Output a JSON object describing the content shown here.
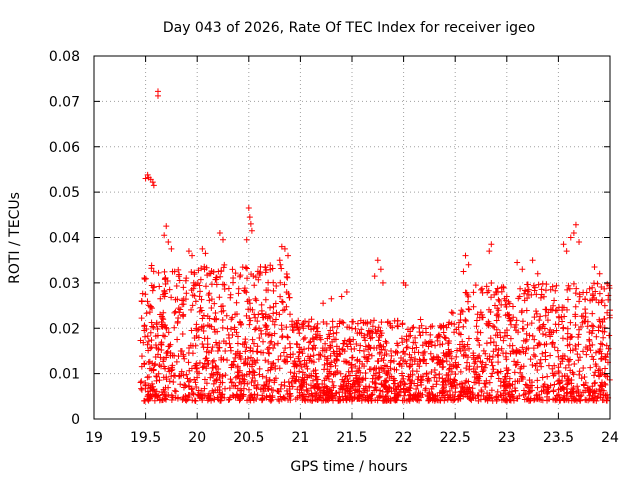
{
  "chart_data": {
    "type": "scatter",
    "title": "Day 043 of 2026, Rate Of TEC Index for receiver igeo",
    "xlabel": "GPS time / hours",
    "ylabel": "ROTI / TECUs",
    "xlim": [
      19,
      24
    ],
    "ylim": [
      0,
      0.08
    ],
    "grid": true,
    "marker": "+",
    "marker_color": "#ff0000",
    "x_ticks": [
      19,
      19.5,
      20,
      20.5,
      21,
      21.5,
      22,
      22.5,
      23,
      23.5,
      24
    ],
    "x_tick_labels": [
      "19",
      "19.5",
      "20",
      "20.5",
      "21",
      "21.5",
      "22",
      "22.5",
      "23",
      "23.5",
      "24"
    ],
    "y_ticks": [
      0,
      0.01,
      0.02,
      0.03,
      0.04,
      0.05,
      0.06,
      0.07,
      0.08
    ],
    "y_tick_labels": [
      "0",
      "0.01",
      "0.02",
      "0.03",
      "0.04",
      "0.05",
      "0.06",
      "0.07",
      "0.08"
    ],
    "series": [
      {
        "name": "ROTI",
        "points": [
          [
            19.62,
            0.0722
          ],
          [
            19.62,
            0.0712
          ],
          [
            19.52,
            0.0538
          ],
          [
            19.53,
            0.0532
          ],
          [
            19.55,
            0.0528
          ],
          [
            19.57,
            0.0522
          ],
          [
            19.58,
            0.0515
          ],
          [
            19.5,
            0.053
          ],
          [
            20.5,
            0.0465
          ],
          [
            20.51,
            0.0445
          ],
          [
            20.52,
            0.043
          ],
          [
            20.53,
            0.0415
          ],
          [
            20.48,
            0.0395
          ],
          [
            19.7,
            0.0425
          ],
          [
            19.68,
            0.0405
          ],
          [
            19.72,
            0.039
          ],
          [
            19.75,
            0.0375
          ],
          [
            23.67,
            0.0428
          ],
          [
            23.65,
            0.041
          ],
          [
            23.62,
            0.04
          ],
          [
            23.7,
            0.039
          ],
          [
            23.55,
            0.0385
          ],
          [
            23.58,
            0.037
          ],
          [
            20.82,
            0.038
          ],
          [
            20.85,
            0.0375
          ],
          [
            20.88,
            0.036
          ],
          [
            20.8,
            0.035
          ],
          [
            22.85,
            0.0385
          ],
          [
            22.83,
            0.037
          ],
          [
            22.6,
            0.036
          ],
          [
            22.63,
            0.034
          ],
          [
            22.58,
            0.0325
          ],
          [
            21.75,
            0.035
          ],
          [
            21.78,
            0.033
          ],
          [
            21.72,
            0.0315
          ],
          [
            21.8,
            0.03
          ],
          [
            20.22,
            0.041
          ],
          [
            20.25,
            0.0395
          ],
          [
            20.05,
            0.0375
          ],
          [
            20.08,
            0.0365
          ],
          [
            19.92,
            0.037
          ],
          [
            19.95,
            0.036
          ],
          [
            23.1,
            0.0345
          ],
          [
            23.15,
            0.033
          ],
          [
            23.25,
            0.035
          ],
          [
            23.3,
            0.032
          ],
          [
            23.85,
            0.0335
          ],
          [
            23.9,
            0.032
          ],
          [
            21.45,
            0.028
          ],
          [
            21.4,
            0.027
          ],
          [
            21.3,
            0.0265
          ],
          [
            21.22,
            0.0255
          ],
          [
            22.0,
            0.03
          ],
          [
            22.02,
            0.0295
          ],
          [
            22.95,
            0.029
          ],
          [
            22.9,
            0.028
          ],
          [
            23.95,
            0.025
          ],
          [
            24.0,
            0.024
          ],
          [
            23.0,
            0.027
          ],
          [
            22.7,
            0.0295
          ]
        ]
      }
    ]
  }
}
